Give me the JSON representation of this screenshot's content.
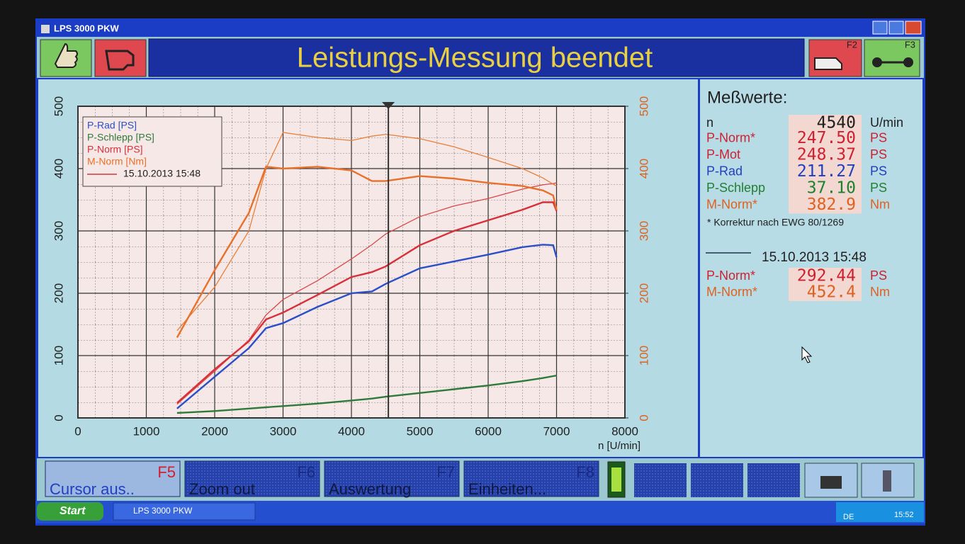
{
  "window": {
    "title": "LPS 3000 PKW"
  },
  "header": {
    "title": "Leistungs-Messung beendet",
    "f2": "F2",
    "f3": "F3"
  },
  "chart_data": {
    "type": "line",
    "xlabel": "n [U/min]",
    "xlim": [
      0,
      8000
    ],
    "xticks": [
      0,
      1000,
      2000,
      3000,
      4000,
      5000,
      6000,
      7000,
      8000
    ],
    "ylim": [
      0,
      500
    ],
    "yticks": [
      0,
      100,
      200,
      300,
      400,
      500
    ],
    "y2lim": [
      0,
      500
    ],
    "y2ticks": [
      0,
      100,
      200,
      300,
      400,
      500
    ],
    "grid": true,
    "cursor": 4540,
    "x": [
      1450,
      2000,
      2500,
      2750,
      3000,
      3500,
      4000,
      4300,
      4500,
      5000,
      5500,
      6000,
      6500,
      6800,
      6950,
      7000
    ],
    "series": [
      {
        "name": "P-Rad [PS]",
        "color": "#2b4fc8",
        "values": [
          15,
          66,
          112,
          144,
          152,
          178,
          200,
          203,
          215,
          240,
          251,
          262,
          274,
          278,
          277,
          258
        ]
      },
      {
        "name": "P-Schlepp [PS]",
        "color": "#2e7a3a",
        "values": [
          8,
          11,
          15,
          17,
          19,
          23,
          28,
          31,
          34,
          40,
          46,
          52,
          59,
          64,
          67,
          68
        ]
      },
      {
        "name": "P-Norm [PS]",
        "color": "#d8303a",
        "values": [
          24,
          78,
          123,
          158,
          169,
          197,
          226,
          234,
          243,
          277,
          300,
          317,
          334,
          346,
          346,
          332
        ]
      },
      {
        "name": "M-Norm [Nm]",
        "color": "#e8702a",
        "axis": "y2",
        "values": [
          129,
          237,
          329,
          403,
          400,
          403,
          397,
          380,
          380,
          388,
          384,
          377,
          372,
          365,
          357,
          334
        ]
      }
    ],
    "reference": {
      "label": "15.10.2013 15:48",
      "color": "#c8383a",
      "series": [
        {
          "color": "#d8484a",
          "values": [
            22,
            75,
            125,
            165,
            190,
            220,
            255,
            278,
            295,
            323,
            340,
            352,
            367,
            374,
            376,
            377
          ]
        },
        {
          "color": "#e8803a",
          "axis": "y2",
          "values": [
            140,
            210,
            300,
            400,
            458,
            450,
            445,
            452,
            455,
            448,
            435,
            418,
            400,
            385,
            375,
            372
          ]
        }
      ]
    }
  },
  "readings": {
    "title": "Meßwerte:",
    "rows": [
      {
        "label": "n",
        "value": "4540",
        "unit": "U/min",
        "color": "#202020"
      },
      {
        "label": "P-Norm*",
        "value": "247.50",
        "unit": "PS",
        "color": "#d02030"
      },
      {
        "label": "P-Mot",
        "value": "248.37",
        "unit": "PS",
        "color": "#d02030"
      },
      {
        "label": "P-Rad",
        "value": "211.27",
        "unit": "PS",
        "color": "#2040c0"
      },
      {
        "label": "P-Schlepp",
        "value": "37.10",
        "unit": "PS",
        "color": "#208030"
      },
      {
        "label": "M-Norm*",
        "value": "382.9",
        "unit": "Nm",
        "color": "#e06020"
      }
    ],
    "note": "* Korrektur nach EWG 80/1269",
    "reference_label": "15.10.2013 15:48",
    "reference_rows": [
      {
        "label": "P-Norm*",
        "value": "292.44",
        "unit": "PS",
        "color": "#d02030"
      },
      {
        "label": "M-Norm*",
        "value": "452.4",
        "unit": "Nm",
        "color": "#e06020"
      }
    ]
  },
  "footer": {
    "buttons": [
      {
        "label": "Cursor aus..",
        "key": "F5"
      },
      {
        "label": "Zoom out",
        "key": "F6"
      },
      {
        "label": "Auswertung",
        "key": "F7"
      },
      {
        "label": "Einheiten...",
        "key": "F8"
      }
    ]
  },
  "taskbar": {
    "start": "Start",
    "task": "LPS 3000 PKW",
    "lang": "DE",
    "clock": "15:52"
  }
}
